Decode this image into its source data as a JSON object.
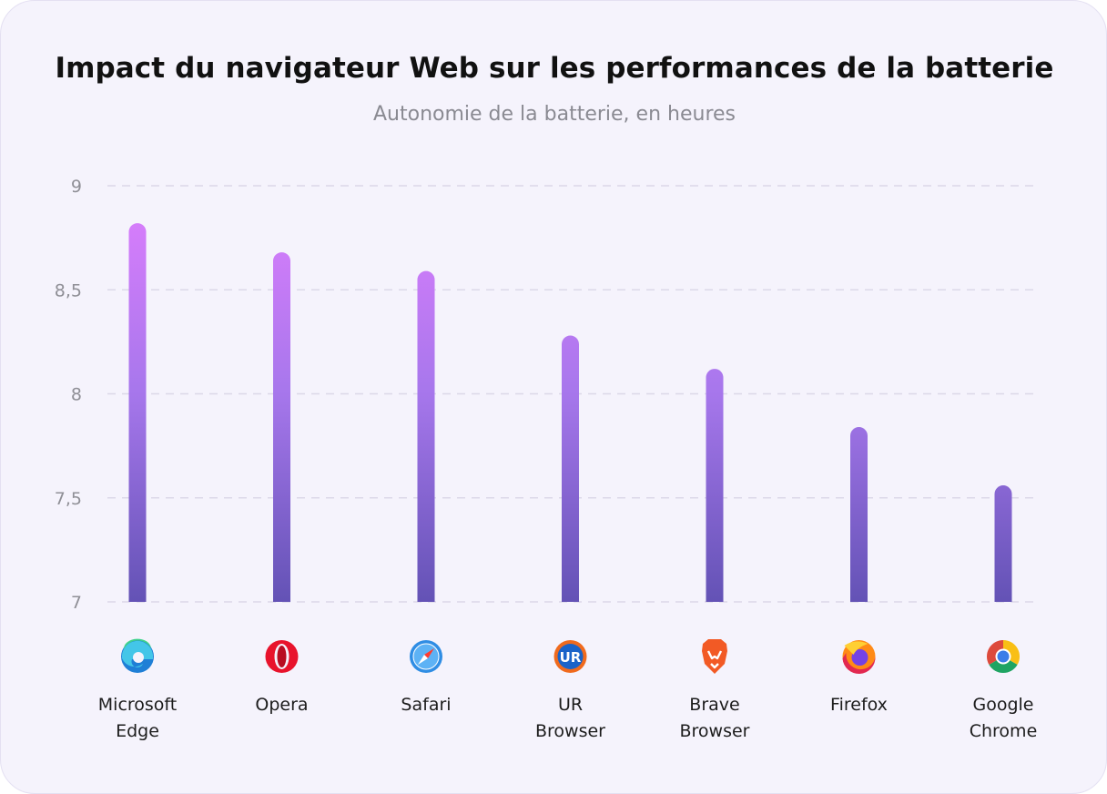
{
  "chart_data": {
    "type": "bar",
    "title": "Impact du navigateur Web sur les performances de la batterie",
    "subtitle": "Autonomie de la batterie, en heures",
    "xlabel": "",
    "ylabel": "",
    "ylim": [
      7,
      9
    ],
    "yticks": [
      7,
      7.5,
      8,
      8.5,
      9
    ],
    "ytick_labels": [
      "7",
      "7,5",
      "8",
      "8,5",
      "9"
    ],
    "grid": true,
    "categories": [
      [
        "Microsoft",
        "Edge"
      ],
      [
        "Opera"
      ],
      [
        "Safari"
      ],
      [
        "UR",
        "Browser"
      ],
      [
        "Brave",
        "Browser"
      ],
      [
        "Firefox"
      ],
      [
        "Google",
        "Chrome"
      ]
    ],
    "icons": [
      "edge-icon",
      "opera-icon",
      "safari-icon",
      "ur-browser-icon",
      "brave-icon",
      "firefox-icon",
      "chrome-icon"
    ],
    "values": [
      8.82,
      8.68,
      8.59,
      8.28,
      8.12,
      7.84,
      7.56
    ],
    "colors": {
      "bar_top": "#d67dfb",
      "bar_mid": "#a777ec",
      "bar_bottom": "#6352b5",
      "grid": "#dcd8e8"
    }
  }
}
